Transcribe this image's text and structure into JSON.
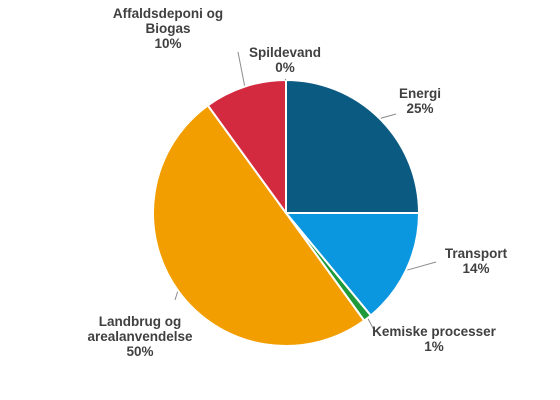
{
  "chart_data": {
    "type": "pie",
    "slices": [
      {
        "label_lines": [
          "Energi"
        ],
        "value": 25,
        "value_label": "25%",
        "color": "#0a5a82"
      },
      {
        "label_lines": [
          "Transport"
        ],
        "value": 14,
        "value_label": "14%",
        "color": "#0b96e0"
      },
      {
        "label_lines": [
          "Kemiske processer"
        ],
        "value": 1,
        "value_label": "1%",
        "color": "#1f9a3b"
      },
      {
        "label_lines": [
          "Landbrug og",
          "arealanvendelse"
        ],
        "value": 50,
        "value_label": "50%",
        "color": "#f29d00"
      },
      {
        "label_lines": [
          "Affaldsdeponi og",
          "Biogas"
        ],
        "value": 10,
        "value_label": "10%",
        "color": "#d42a40"
      },
      {
        "label_lines": [
          "Spildevand"
        ],
        "value": 0,
        "value_label": "0%",
        "color": "#7f7f7f"
      }
    ]
  }
}
